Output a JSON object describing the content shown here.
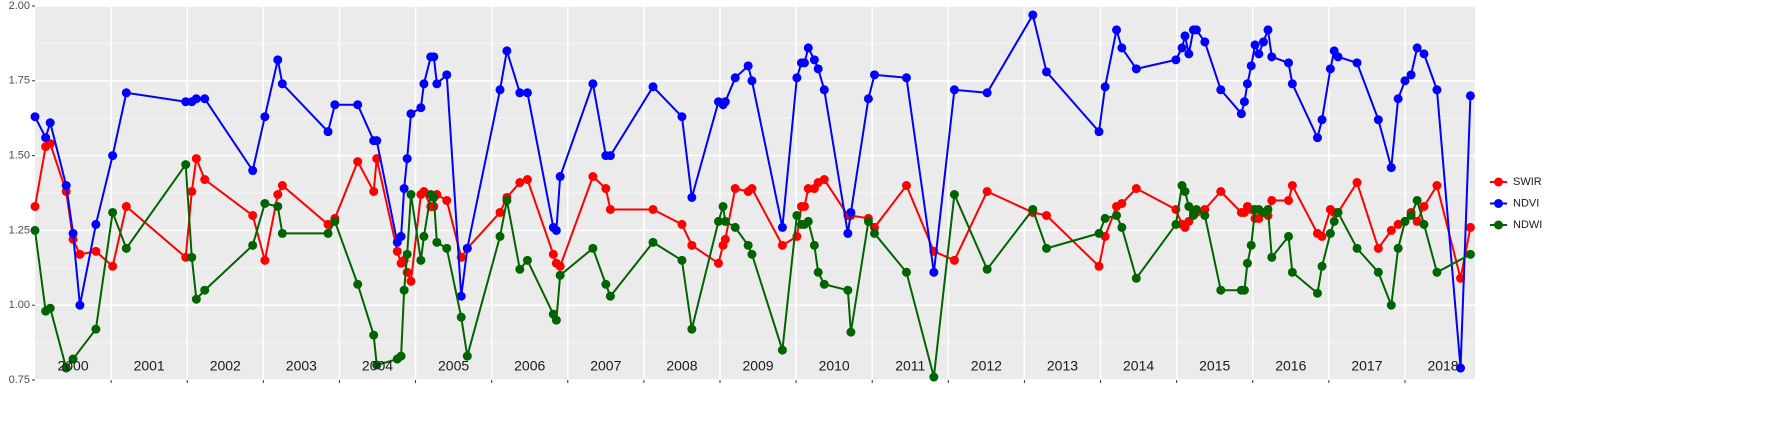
{
  "chart_data": {
    "type": "line",
    "x": [
      2000.0,
      2000.14,
      2000.2,
      2000.41,
      2000.5,
      2000.59,
      2000.8,
      2001.02,
      2001.2,
      2001.98,
      2002.06,
      2002.12,
      2002.23,
      2002.86,
      2003.02,
      2003.19,
      2003.25,
      2003.85,
      2003.94,
      2004.24,
      2004.45,
      2004.49,
      2004.76,
      2004.81,
      2004.85,
      2004.89,
      2004.94,
      2005.07,
      2005.11,
      2005.2,
      2005.24,
      2005.28,
      2005.41,
      2005.6,
      2005.68,
      2006.11,
      2006.2,
      2006.37,
      2006.47,
      2006.81,
      2006.85,
      2006.9,
      2007.33,
      2007.5,
      2007.56,
      2008.12,
      2008.5,
      2008.63,
      2008.98,
      2009.04,
      2009.07,
      2009.2,
      2009.37,
      2009.42,
      2009.82,
      2010.01,
      2010.07,
      2010.11,
      2010.16,
      2010.24,
      2010.29,
      2010.37,
      2010.68,
      2010.72,
      2010.95,
      2011.03,
      2011.45,
      2011.81,
      2012.08,
      2012.51,
      2013.11,
      2013.29,
      2013.98,
      2014.06,
      2014.21,
      2014.28,
      2014.47,
      2014.99,
      2015.07,
      2015.11,
      2015.16,
      2015.22,
      2015.26,
      2015.37,
      2015.58,
      2015.85,
      2015.89,
      2015.93,
      2015.98,
      2016.03,
      2016.08,
      2016.14,
      2016.2,
      2016.25,
      2016.47,
      2016.52,
      2016.85,
      2016.91,
      2017.02,
      2017.07,
      2017.12,
      2017.37,
      2017.65,
      2017.82,
      2017.91,
      2018.0,
      2018.08,
      2018.16,
      2018.25,
      2018.42,
      2018.73,
      2018.86
    ],
    "series": [
      {
        "name": "SWIR",
        "color": "#ff0000",
        "values": [
          1.33,
          1.53,
          1.54,
          1.38,
          1.22,
          1.17,
          1.18,
          1.13,
          1.33,
          1.16,
          1.38,
          1.49,
          1.42,
          1.3,
          1.15,
          1.37,
          1.4,
          1.27,
          1.29,
          1.48,
          1.38,
          1.49,
          1.18,
          1.14,
          1.15,
          1.11,
          1.08,
          1.37,
          1.38,
          1.33,
          1.33,
          1.37,
          1.35,
          1.16,
          1.19,
          1.31,
          1.36,
          1.41,
          1.42,
          1.17,
          1.14,
          1.13,
          1.43,
          1.39,
          1.32,
          1.32,
          1.27,
          1.2,
          1.14,
          1.2,
          1.22,
          1.39,
          1.38,
          1.39,
          1.2,
          1.23,
          1.33,
          1.33,
          1.39,
          1.39,
          1.41,
          1.42,
          1.3,
          1.3,
          1.29,
          1.26,
          1.4,
          1.18,
          1.15,
          1.38,
          1.31,
          1.3,
          1.13,
          1.23,
          1.33,
          1.34,
          1.39,
          1.32,
          1.27,
          1.26,
          1.28,
          1.31,
          1.31,
          1.32,
          1.38,
          1.31,
          1.31,
          1.33,
          1.32,
          1.29,
          1.29,
          1.31,
          1.3,
          1.35,
          1.35,
          1.4,
          1.24,
          1.23,
          1.32,
          1.31,
          1.31,
          1.41,
          1.19,
          1.25,
          1.27,
          1.28,
          1.31,
          1.28,
          1.33,
          1.4,
          1.09,
          1.26
        ]
      },
      {
        "name": "NDVI",
        "color": "#0000ff",
        "values": [
          1.63,
          1.56,
          1.61,
          1.4,
          1.24,
          1.0,
          1.27,
          1.5,
          1.71,
          1.68,
          1.68,
          1.69,
          1.69,
          1.45,
          1.63,
          1.82,
          1.74,
          1.58,
          1.67,
          1.67,
          1.55,
          1.55,
          1.21,
          1.23,
          1.39,
          1.49,
          1.64,
          1.66,
          1.74,
          1.83,
          1.83,
          1.74,
          1.77,
          1.03,
          1.19,
          1.72,
          1.85,
          1.71,
          1.71,
          1.26,
          1.25,
          1.43,
          1.74,
          1.5,
          1.5,
          1.73,
          1.63,
          1.36,
          1.68,
          1.67,
          1.68,
          1.76,
          1.8,
          1.75,
          1.26,
          1.76,
          1.81,
          1.81,
          1.86,
          1.82,
          1.79,
          1.72,
          1.24,
          1.31,
          1.69,
          1.77,
          1.76,
          1.11,
          1.72,
          1.71,
          1.97,
          1.78,
          1.58,
          1.73,
          1.92,
          1.86,
          1.79,
          1.82,
          1.86,
          1.9,
          1.84,
          1.92,
          1.92,
          1.88,
          1.72,
          1.64,
          1.68,
          1.74,
          1.8,
          1.87,
          1.84,
          1.88,
          1.92,
          1.83,
          1.81,
          1.74,
          1.56,
          1.62,
          1.79,
          1.85,
          1.83,
          1.81,
          1.62,
          1.46,
          1.69,
          1.75,
          1.77,
          1.86,
          1.84,
          1.72,
          0.79,
          1.7
        ]
      },
      {
        "name": "NDWI",
        "color": "#006400",
        "x": [
          2000.0,
          2000.14,
          2000.2,
          2000.41,
          2000.5,
          2000.8,
          2001.02,
          2001.2,
          2001.98,
          2002.06,
          2002.12,
          2002.23,
          2002.86,
          2003.02,
          2003.19,
          2003.25,
          2003.85,
          2003.94,
          2004.24,
          2004.45,
          2004.49,
          2004.76,
          2004.81,
          2004.85,
          2004.89,
          2004.94,
          2005.07,
          2005.11,
          2005.2,
          2005.24,
          2005.28,
          2005.41,
          2005.6,
          2005.68,
          2006.11,
          2006.2,
          2006.37,
          2006.47,
          2006.81,
          2006.85,
          2006.9,
          2007.33,
          2007.5,
          2007.56,
          2008.12,
          2008.5,
          2008.63,
          2008.98,
          2009.04,
          2009.07,
          2009.2,
          2009.37,
          2009.42,
          2009.82,
          2010.01,
          2010.07,
          2010.11,
          2010.16,
          2010.24,
          2010.29,
          2010.37,
          2010.68,
          2010.72,
          2010.95,
          2011.03,
          2011.45,
          2011.81,
          2012.08,
          2012.51,
          2013.11,
          2013.29,
          2013.98,
          2014.06,
          2014.21,
          2014.28,
          2014.47,
          2014.99,
          2015.07,
          2015.11,
          2015.16,
          2015.22,
          2015.26,
          2015.37,
          2015.58,
          2015.85,
          2015.89,
          2015.93,
          2015.98,
          2016.03,
          2016.08,
          2016.14,
          2016.2,
          2016.25,
          2016.47,
          2016.52,
          2016.85,
          2016.91,
          2017.02,
          2017.07,
          2017.12,
          2017.37,
          2017.65,
          2017.82,
          2017.91,
          2018.0,
          2018.08,
          2018.16,
          2018.25,
          2018.42,
          2018.86
        ],
        "values": [
          1.25,
          0.98,
          0.99,
          0.79,
          0.82,
          0.92,
          1.31,
          1.19,
          1.47,
          1.16,
          1.02,
          1.05,
          1.2,
          1.34,
          1.33,
          1.24,
          1.24,
          1.28,
          1.07,
          0.9,
          0.8,
          0.82,
          0.83,
          1.05,
          1.17,
          1.37,
          1.15,
          1.23,
          1.37,
          1.36,
          1.21,
          1.19,
          0.96,
          0.83,
          1.23,
          1.35,
          1.12,
          1.15,
          0.97,
          0.95,
          1.1,
          1.19,
          1.07,
          1.03,
          1.21,
          1.15,
          0.92,
          1.28,
          1.33,
          1.28,
          1.26,
          1.2,
          1.17,
          0.85,
          1.3,
          1.27,
          1.27,
          1.28,
          1.2,
          1.11,
          1.07,
          1.05,
          0.91,
          1.28,
          1.24,
          1.11,
          0.76,
          1.37,
          1.12,
          1.32,
          1.19,
          1.24,
          1.29,
          1.3,
          1.26,
          1.09,
          1.27,
          1.4,
          1.38,
          1.33,
          1.3,
          1.32,
          1.3,
          1.05,
          1.05,
          1.05,
          1.14,
          1.2,
          1.32,
          1.32,
          1.31,
          1.32,
          1.16,
          1.23,
          1.11,
          1.04,
          1.13,
          1.24,
          1.28,
          1.31,
          1.19,
          1.11,
          1.0,
          1.19,
          1.28,
          1.3,
          1.35,
          1.27,
          1.11,
          1.17
        ]
      }
    ],
    "xlim": [
      2000,
      2018.92
    ],
    "xticks": [
      2001,
      2002,
      2003,
      2004,
      2005,
      2006,
      2007,
      2008,
      2009,
      2010,
      2011,
      2012,
      2013,
      2014,
      2015,
      2016,
      2017,
      2018
    ],
    "ylim": [
      0.75,
      2.0
    ],
    "yticks": [
      {
        "value": 0.75,
        "label": "0.75"
      },
      {
        "value": 1.0,
        "label": "1.00"
      },
      {
        "value": 1.25,
        "label": "1.25"
      },
      {
        "value": 1.5,
        "label": "1.50"
      },
      {
        "value": 1.75,
        "label": "1.75"
      },
      {
        "value": 2.0,
        "label": "2.00"
      }
    ],
    "year_labels": [
      {
        "text": "2000",
        "x": 2000.5
      },
      {
        "text": "2001",
        "x": 2001.5
      },
      {
        "text": "2002",
        "x": 2002.5
      },
      {
        "text": "2003",
        "x": 2003.5
      },
      {
        "text": "2004",
        "x": 2004.5
      },
      {
        "text": "2005",
        "x": 2005.5
      },
      {
        "text": "2006",
        "x": 2006.5
      },
      {
        "text": "2007",
        "x": 2007.5
      },
      {
        "text": "2008",
        "x": 2008.5
      },
      {
        "text": "2009",
        "x": 2009.5
      },
      {
        "text": "2010",
        "x": 2010.5
      },
      {
        "text": "2011",
        "x": 2011.5
      },
      {
        "text": "2012",
        "x": 2012.5
      },
      {
        "text": "2013",
        "x": 2013.5
      },
      {
        "text": "2014",
        "x": 2014.5
      },
      {
        "text": "2015",
        "x": 2015.5
      },
      {
        "text": "2016",
        "x": 2016.5
      },
      {
        "text": "2017",
        "x": 2017.5
      },
      {
        "text": "2018",
        "x": 2018.5
      }
    ],
    "grid": true,
    "legend": "right"
  }
}
